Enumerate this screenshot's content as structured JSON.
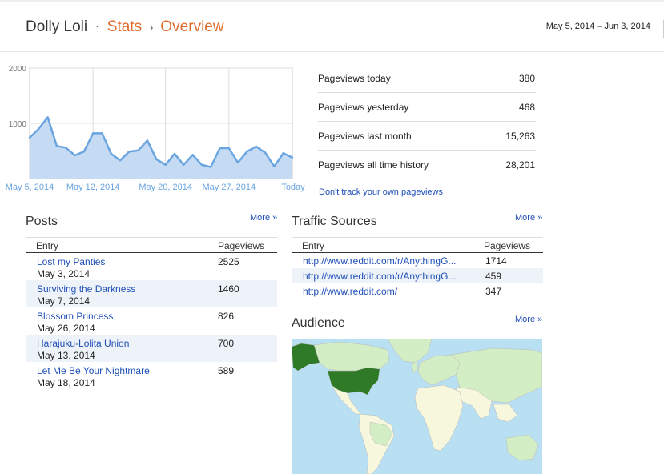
{
  "header": {
    "blog_name": "Dolly Loli",
    "crumb_sep": "·",
    "crumb_stats": "Stats",
    "crumb_arrow": "›",
    "crumb_overview": "Overview",
    "date_range": "May 5, 2014 – Jun 3, 2014"
  },
  "chart_data": {
    "type": "area",
    "x": [
      "May 5",
      "May 6",
      "May 7",
      "May 8",
      "May 9",
      "May 10",
      "May 11",
      "May 12",
      "May 13",
      "May 14",
      "May 15",
      "May 16",
      "May 17",
      "May 18",
      "May 19",
      "May 20",
      "May 21",
      "May 22",
      "May 23",
      "May 24",
      "May 25",
      "May 26",
      "May 27",
      "May 28",
      "May 29",
      "May 30",
      "May 31",
      "Jun 1",
      "Jun 2",
      "Jun 3"
    ],
    "values": [
      740,
      900,
      1110,
      590,
      560,
      420,
      490,
      820,
      820,
      450,
      330,
      490,
      510,
      690,
      350,
      250,
      450,
      250,
      430,
      250,
      210,
      550,
      550,
      290,
      490,
      580,
      470,
      220,
      460,
      380
    ],
    "ylim": [
      0,
      2000
    ],
    "y_ticks": [
      "2000",
      "1000"
    ],
    "x_tick_labels": [
      "May 5, 2014",
      "May 12, 2014",
      "May 20, 2014",
      "May 27, 2014",
      "Today"
    ],
    "line_color": "#6aa5e0",
    "fill_color": "#c5dbf4",
    "grid": true
  },
  "stats": [
    {
      "label": "Pageviews today",
      "value": "380"
    },
    {
      "label": "Pageviews yesterday",
      "value": "468"
    },
    {
      "label": "Pageviews last month",
      "value": "15,263"
    },
    {
      "label": "Pageviews all time history",
      "value": "28,201"
    }
  ],
  "dont_track": "Don't track your own pageviews",
  "posts": {
    "title": "Posts",
    "more": "More »",
    "col_entry": "Entry",
    "col_pageviews": "Pageviews",
    "rows": [
      {
        "title": "Lost my Panties",
        "date": "May 3, 2014",
        "pageviews": "2525"
      },
      {
        "title": "Surviving the Darkness",
        "date": "May 7, 2014",
        "pageviews": "1460"
      },
      {
        "title": "Blossom Princess",
        "date": "May 26, 2014",
        "pageviews": "826"
      },
      {
        "title": "Harajuku-Lolita Union",
        "date": "May 13, 2014",
        "pageviews": "700"
      },
      {
        "title": "Let Me Be Your Nightmare",
        "date": "May 18, 2014",
        "pageviews": "589"
      }
    ]
  },
  "traffic": {
    "title": "Traffic Sources",
    "more": "More »",
    "col_entry": "Entry",
    "col_pageviews": "Pageviews",
    "rows": [
      {
        "url": "http://www.reddit.com/r/AnythingG...",
        "pageviews": "1714"
      },
      {
        "url": "http://www.reddit.com/r/AnythingG...",
        "pageviews": "459"
      },
      {
        "url": "http://www.reddit.com/",
        "pageviews": "347"
      }
    ]
  },
  "audience": {
    "title": "Audience",
    "more": "More »",
    "colors": {
      "ocean": "#b9dff2",
      "land": "#f7f7dd",
      "light": "#d3edc4",
      "dark": "#2f7a26"
    }
  }
}
